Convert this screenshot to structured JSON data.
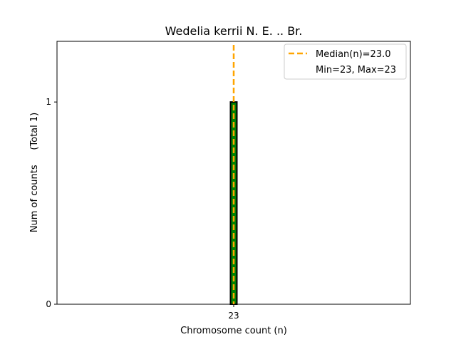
{
  "chart_data": {
    "type": "bar",
    "title": "Wedelia kerrii N. E. .. Br.",
    "xlabel": "Chromosome count (n)",
    "ylabel": "Num of counts     (Total 1)",
    "categories": [
      "23"
    ],
    "x": [
      23
    ],
    "values": [
      1
    ],
    "x_ticks": [
      "23"
    ],
    "y_ticks": [
      "0",
      "1"
    ],
    "ylim": [
      0,
      1.3
    ],
    "grid": false,
    "bar_color": "#008000",
    "bar_edge_color": "#000000",
    "median": {
      "value": 23.0,
      "label": "Median(n)=23.0",
      "color": "#FFA500",
      "style": "dashed"
    },
    "legend": {
      "placement": "top-right",
      "entries": [
        "Median(n)=23.0",
        "Min=23, Max=23"
      ]
    }
  }
}
